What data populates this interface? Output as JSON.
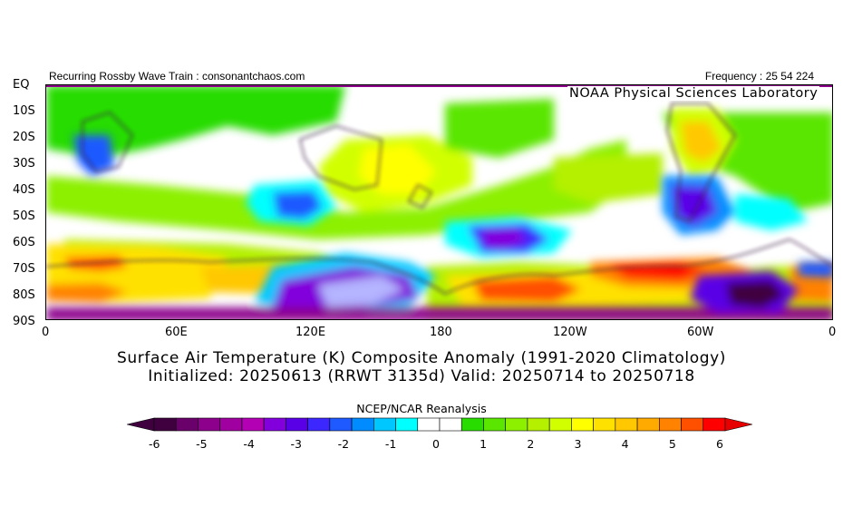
{
  "header": {
    "left": "Recurring Rossby Wave Train : consonantchaos.com",
    "right": "Frequency : 25 54 224"
  },
  "map": {
    "overlay_label": "NOAA Physical Sciences Laboratory",
    "lat_labels": [
      "EQ",
      "10S",
      "20S",
      "30S",
      "40S",
      "50S",
      "60S",
      "70S",
      "80S",
      "90S"
    ],
    "lon_labels": [
      "0",
      "60E",
      "120E",
      "180",
      "120W",
      "60W",
      "0"
    ],
    "field": "Surface Air Temperature composite anomaly, Southern Hemisphere"
  },
  "titles": {
    "line1": "Surface Air Temperature (K) Composite Anomaly (1991-2020 Climatology)",
    "line2": "Initialized: 20250613 (RRWT 3135d) Valid: 20250714 to 20250718"
  },
  "colorbar": {
    "title": "NCEP/NCAR Reanalysis",
    "ticks": [
      "-6",
      "-5",
      "-4",
      "-3",
      "-2",
      "-1",
      "0",
      "1",
      "2",
      "3",
      "4",
      "5",
      "6"
    ],
    "colors": [
      "#400040",
      "#6a006a",
      "#8c008c",
      "#a000a0",
      "#b400b4",
      "#8200dc",
      "#5a00e6",
      "#3c28ff",
      "#1e5aff",
      "#008cff",
      "#00c8ff",
      "#00ffff",
      "#ffffff",
      "#ffffff",
      "#28dc00",
      "#5ae600",
      "#8cf000",
      "#b4f000",
      "#d2ff00",
      "#ffff00",
      "#ffe100",
      "#ffc800",
      "#ffaa00",
      "#ff8200",
      "#ff5000",
      "#ff0000"
    ],
    "under_color": "#400040",
    "over_color": "#e60000"
  }
}
